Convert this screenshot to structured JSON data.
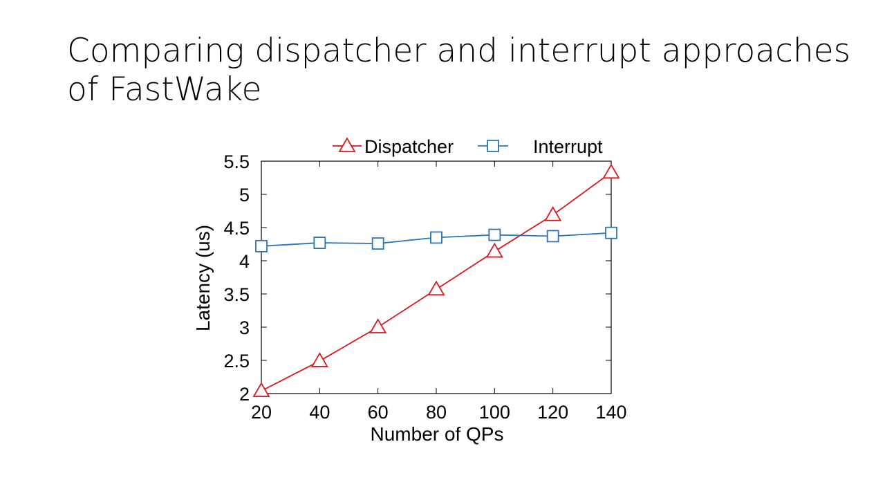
{
  "slide": {
    "title_line1": "Comparing dispatcher and interrupt approaches",
    "title_line2": "of FastWake"
  },
  "chart_data": {
    "type": "line",
    "title": "",
    "xlabel": "Number of QPs",
    "ylabel": "Latency (us)",
    "x": [
      20,
      40,
      60,
      80,
      100,
      120,
      140
    ],
    "xlim": [
      20,
      140
    ],
    "ylim": [
      2,
      5.5
    ],
    "xticks": [
      "20",
      "40",
      "60",
      "80",
      "100",
      "120",
      "140"
    ],
    "yticks": [
      "2",
      "2.5",
      "3",
      "3.5",
      "4",
      "4.5",
      "5",
      "5.5"
    ],
    "legend_position": "top",
    "grid": false,
    "series": [
      {
        "name": "Dispatcher",
        "marker": "triangle",
        "color": "#d7191c",
        "values": [
          2.04,
          2.49,
          3.0,
          3.57,
          4.14,
          4.69,
          5.33
        ]
      },
      {
        "name": "Interrupt",
        "marker": "square",
        "color": "#2b74b8",
        "values": [
          4.22,
          4.27,
          4.26,
          4.35,
          4.39,
          4.37,
          4.42
        ]
      }
    ]
  }
}
